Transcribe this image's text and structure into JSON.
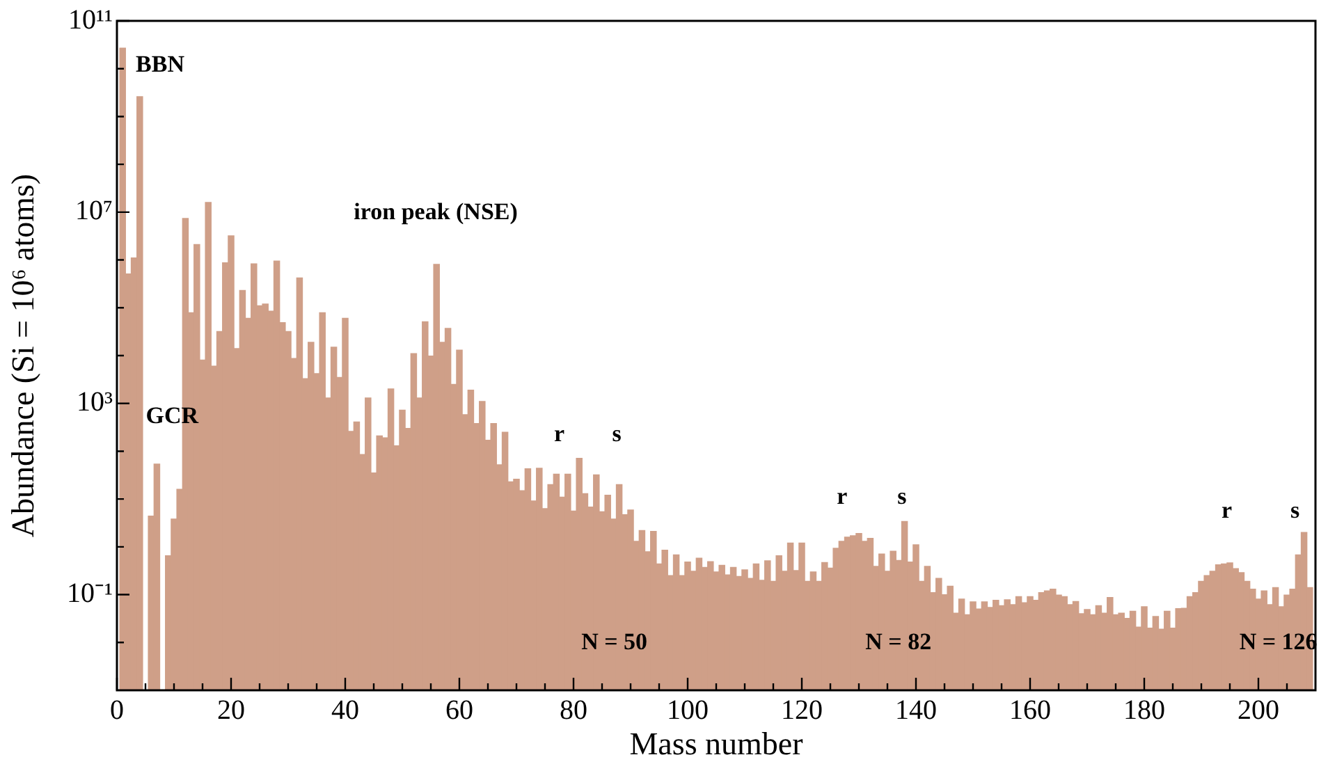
{
  "chart_data": {
    "type": "histogram",
    "xlabel": "Mass number",
    "ylabel": "Abundance (Si = 10⁶ atoms)",
    "color": "#cf9f88",
    "log": "y",
    "xlim": [
      0,
      210
    ],
    "ylim": [
      0.001,
      100000000000.0
    ],
    "bins": [
      0.5,
      1.5,
      2.5,
      3.5,
      4.5,
      5.5,
      6.5,
      7.5,
      8.5,
      9.5,
      10.5,
      11.5,
      12.5,
      13.5,
      14.5,
      15.5,
      16.5,
      17.5,
      18.5,
      19.5,
      20.5,
      21.5,
      22.5,
      23.5,
      24.5,
      25.5,
      26.5,
      27.5,
      28.5,
      29.5,
      30.5,
      31.5,
      32.5,
      33.5,
      34.5,
      35.5,
      36.5,
      37.5,
      38.5,
      39.5,
      40.5,
      41.5,
      42.5,
      43.5,
      44.5,
      45.5,
      46.5,
      47.5,
      48.5,
      49.5,
      50.5,
      51.5,
      52.5,
      53.5,
      54.5,
      55.5,
      56.5,
      57.5,
      58.5,
      59.5,
      60.5,
      61.5,
      62.5,
      63.5,
      64.5,
      65.5,
      66.5,
      67.5,
      68.5,
      69.5,
      70.5,
      71.5,
      72.5,
      73.5,
      74.5,
      75.5,
      76.5,
      77.5,
      78.5,
      79.5,
      80.5,
      81.5,
      82.5,
      83.5,
      84.5,
      85.5,
      86.5,
      87.5,
      88.5,
      89.5,
      90.5,
      91.5,
      92.5,
      93.5,
      94.5,
      95.5,
      96.5,
      97.5,
      98.5,
      99.5,
      100.5,
      101.5,
      102.5,
      103.5,
      104.5,
      105.5,
      106.5,
      107.5,
      108.5,
      109.5,
      110.5,
      111.5,
      112.5,
      113.5,
      114.5,
      115.5,
      116.5,
      117.5,
      118.5,
      119.5,
      120.5,
      121.5,
      122.5,
      123.5,
      124.5,
      125.5,
      126.5,
      127.5,
      128.5,
      129.5,
      130.5,
      131.5,
      132.5,
      133.5,
      134.5,
      135.5,
      136.5,
      137.5,
      138.5,
      139.5,
      140.5,
      141.5,
      142.5,
      143.5,
      144.5,
      145.5,
      146.5,
      147.5,
      148.5,
      149.5,
      150.5,
      151.5,
      152.5,
      153.5,
      154.5,
      155.5,
      156.5,
      157.5,
      158.5,
      159.5,
      160.5,
      161.5,
      162.5,
      163.5,
      164.5,
      165.5,
      166.5,
      167.5,
      168.5,
      169.5,
      170.5,
      171.5,
      172.5,
      173.5,
      174.5,
      175.5,
      176.5,
      177.5,
      178.5,
      179.5,
      180.5,
      181.5,
      182.5,
      183.5,
      184.5,
      185.5,
      186.5,
      187.5,
      188.5,
      189.5,
      190.5,
      191.5,
      192.5,
      193.5,
      194.5,
      195.5,
      196.5,
      197.5,
      198.5,
      199.5,
      200.5,
      201.5,
      202.5,
      203.5,
      204.5,
      205.5,
      206.5,
      207.5,
      208.5,
      209.5
    ],
    "values": [
      27000000000.0,
      510000.0,
      1100000.0,
      2600000000.0,
      null,
      4.4,
      54,
      null,
      0.65,
      3.8,
      16,
      7400000.0,
      79000.0,
      2100000.0,
      8100.0,
      16000000.0,
      6000.0,
      32000.0,
      870000.0,
      3200000.0,
      14000.0,
      230000.0,
      60000.0,
      830000.0,
      110000.0,
      120000.0,
      85000.0,
      950000.0,
      49000.0,
      32000.0,
      8700.0,
      420000.0,
      3300.0,
      19000.0,
      4200.0,
      79000.0,
      1300.0,
      15000.0,
      3500.0,
      60000.0,
      260,
      410,
      85,
      1300,
      35,
      210,
      190,
      2000,
      130,
      720,
      300,
      11000.0,
      1300,
      51000.0,
      9800.0,
      810000.0,
      19000.0,
      37000.0,
      2500,
      13000.0,
      580,
      1900,
      380,
      1100,
      170,
      380,
      52,
      250,
      23,
      26,
      15,
      43,
      9.1,
      44,
      6.3,
      20,
      33,
      11,
      33,
      5.6,
      71,
      13,
      6.8,
      32,
      5.4,
      12,
      3.8,
      20,
      4.7,
      5.9,
      1.3,
      2.2,
      0.79,
      2.1,
      0.44,
      0.85,
      0.25,
      0.68,
      0.25,
      0.48,
      0.31,
      0.58,
      0.37,
      0.49,
      0.3,
      0.41,
      0.26,
      0.37,
      0.24,
      0.33,
      0.22,
      0.44,
      0.2,
      0.51,
      0.19,
      0.65,
      0.31,
      1.2,
      0.32,
      1.2,
      0.19,
      0.3,
      0.19,
      0.47,
      0.36,
      0.93,
      1.3,
      1.6,
      1.7,
      1.9,
      1.3,
      1.5,
      0.39,
      0.71,
      0.31,
      0.81,
      0.52,
      3.4,
      0.48,
      1.1,
      0.19,
      0.39,
      0.11,
      0.22,
      0.1,
      0.15,
      0.041,
      0.081,
      0.038,
      0.071,
      0.05,
      0.071,
      0.054,
      0.076,
      0.059,
      0.078,
      0.062,
      0.091,
      0.068,
      0.091,
      0.076,
      0.11,
      0.12,
      0.13,
      0.098,
      0.091,
      0.062,
      0.072,
      0.04,
      0.049,
      0.038,
      0.059,
      0.041,
      0.087,
      0.038,
      0.041,
      0.032,
      0.045,
      0.021,
      0.056,
      0.02,
      0.035,
      0.019,
      0.045,
      0.02,
      0.051,
      0.052,
      0.091,
      0.11,
      0.19,
      0.25,
      0.31,
      0.42,
      0.44,
      0.46,
      0.35,
      0.29,
      0.19,
      0.13,
      0.081,
      0.12,
      0.062,
      0.14,
      0.056,
      0.098,
      0.13,
      0.68,
      2.0,
      0.14
    ],
    "xticks": [
      0,
      {
        "value": 5,
        "label": null
      },
      {
        "value": 10,
        "label": null
      },
      {
        "value": 15,
        "label": null
      },
      20,
      {
        "value": 25,
        "label": null
      },
      {
        "value": 30,
        "label": null
      },
      {
        "value": 35,
        "label": null
      },
      40,
      {
        "value": 45,
        "label": null
      },
      {
        "value": 50,
        "label": null
      },
      {
        "value": 55,
        "label": null
      },
      60,
      {
        "value": 65,
        "label": null
      },
      {
        "value": 70,
        "label": null
      },
      {
        "value": 75,
        "label": null
      },
      80,
      {
        "value": 85,
        "label": null
      },
      {
        "value": 90,
        "label": null
      },
      {
        "value": 95,
        "label": null
      },
      100,
      {
        "value": 105,
        "label": null
      },
      {
        "value": 110,
        "label": null
      },
      {
        "value": 115,
        "label": null
      },
      120,
      {
        "value": 125,
        "label": null
      },
      {
        "value": 130,
        "label": null
      },
      {
        "value": 135,
        "label": null
      },
      140,
      {
        "value": 145,
        "label": null
      },
      {
        "value": 150,
        "label": null
      },
      {
        "value": 155,
        "label": null
      },
      160,
      {
        "value": 165,
        "label": null
      },
      {
        "value": 170,
        "label": null
      },
      {
        "value": 175,
        "label": null
      },
      180,
      {
        "value": 185,
        "label": null
      },
      {
        "value": 190,
        "label": null
      },
      {
        "value": 195,
        "label": null
      },
      200,
      {
        "value": 205,
        "label": null
      }
    ],
    "yticks": [
      {
        "value": 0.01,
        "label": null
      },
      {
        "value": 0.1,
        "label": "10⁻¹"
      },
      {
        "value": 1,
        "label": null
      },
      {
        "value": 10,
        "label": null
      },
      {
        "value": 100,
        "label": null
      },
      {
        "value": 1000,
        "label": "10³"
      },
      {
        "value": 10000.0,
        "label": null
      },
      {
        "value": 100000.0,
        "label": null
      },
      {
        "value": 1000000.0,
        "label": null
      },
      {
        "value": 10000000.0,
        "label": "10⁷"
      },
      {
        "value": 100000000.0,
        "label": null
      },
      {
        "value": 1000000000.0,
        "label": null
      },
      {
        "value": 10000000000.0,
        "label": null
      },
      {
        "value": 100000000000.0,
        "label": "10¹¹"
      }
    ],
    "annotations": [
      "BBN",
      "GCR",
      "iron peak (NSE)",
      "r",
      "s",
      "r",
      "s",
      "r",
      "s",
      "N = 50",
      "N = 82",
      "N = 126"
    ]
  }
}
